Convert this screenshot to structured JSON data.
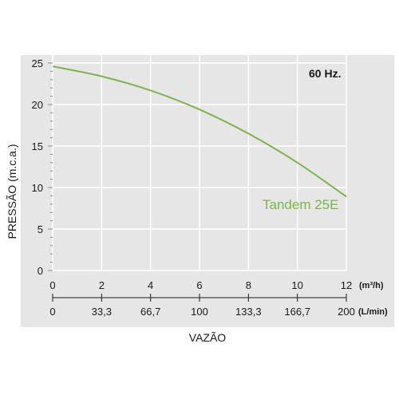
{
  "chart_data": {
    "type": "line",
    "ylabel": "PRESSÃO (m.c.a.)",
    "xlabel": "VAZÃO",
    "annotation": "60 Hz.",
    "x_unit": "(m³/h)",
    "x2_unit": "(L/min)",
    "xlim": [
      0,
      12
    ],
    "ylim": [
      0,
      25
    ],
    "x_ticks": [
      "0",
      "2",
      "4",
      "6",
      "8",
      "10",
      "12"
    ],
    "x2_ticks": [
      "0",
      "33,3",
      "66,7",
      "100",
      "133,3",
      "166,7",
      "200"
    ],
    "y_ticks": [
      "0",
      "5",
      "10",
      "15",
      "20",
      "25"
    ],
    "grid": true,
    "series": [
      {
        "name": "Tandem 25E",
        "color": "#7ab648",
        "x": [
          0,
          2,
          4,
          6,
          8,
          10,
          12
        ],
        "y": [
          24.6,
          23.4,
          21.7,
          19.4,
          16.5,
          13.0,
          8.9
        ]
      }
    ]
  }
}
